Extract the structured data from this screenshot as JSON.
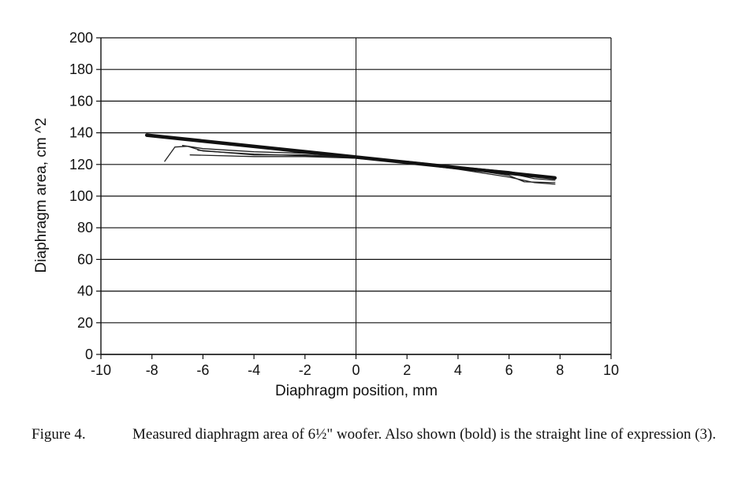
{
  "chart_data": {
    "type": "line",
    "title": "",
    "xlabel": "Diaphragm position, mm",
    "ylabel": "Diaphragm area, cm ^2",
    "xlim": [
      -10,
      10
    ],
    "ylim": [
      0,
      200
    ],
    "xticks": [
      -10,
      -8,
      -6,
      -4,
      -2,
      0,
      2,
      4,
      6,
      8,
      10
    ],
    "yticks": [
      0,
      20,
      40,
      60,
      80,
      100,
      120,
      140,
      160,
      180,
      200
    ],
    "grid": "horizontal",
    "series": [
      {
        "style": "bold",
        "color": "#111111",
        "x": [
          -8.2,
          7.8
        ],
        "y": [
          138.5,
          111.5
        ]
      },
      {
        "style": "thin",
        "color": "#222222",
        "x": [
          -7.5,
          -7.1,
          -6.6,
          -6.0,
          -4.0,
          -2.0,
          0.0,
          2.0,
          4.0,
          6.0,
          6.6,
          7.8
        ],
        "y": [
          122.0,
          131.0,
          131.5,
          128.5,
          126.5,
          125.5,
          124.0,
          121.0,
          118.0,
          113.0,
          109.0,
          108.5
        ]
      },
      {
        "style": "thin",
        "color": "#222222",
        "x": [
          -6.8,
          -6.0,
          -4.0,
          -2.0,
          0.0,
          2.0,
          4.0,
          6.0,
          7.0,
          7.8
        ],
        "y": [
          132.0,
          130.0,
          128.0,
          127.0,
          124.5,
          121.5,
          118.5,
          114.5,
          111.0,
          110.0
        ]
      },
      {
        "style": "thin",
        "color": "#222222",
        "x": [
          -6.5,
          -4.0,
          -2.0,
          0.0,
          2.0,
          4.0,
          6.0,
          7.0,
          7.8
        ],
        "y": [
          126.0,
          125.0,
          125.0,
          124.0,
          121.0,
          117.0,
          112.0,
          108.5,
          107.5
        ]
      },
      {
        "style": "thin",
        "color": "#222222",
        "x": [
          -6.2,
          -4.0,
          -2.0,
          0.0,
          2.0,
          4.0,
          6.0,
          7.2,
          7.8
        ],
        "y": [
          129.0,
          126.0,
          126.0,
          124.5,
          122.0,
          118.5,
          115.5,
          112.0,
          111.0
        ]
      }
    ]
  },
  "caption": {
    "label": "Figure 4.",
    "text": "Measured diaphragm area of 6½\" woofer. Also shown (bold) is the straight line of expression (3)."
  }
}
